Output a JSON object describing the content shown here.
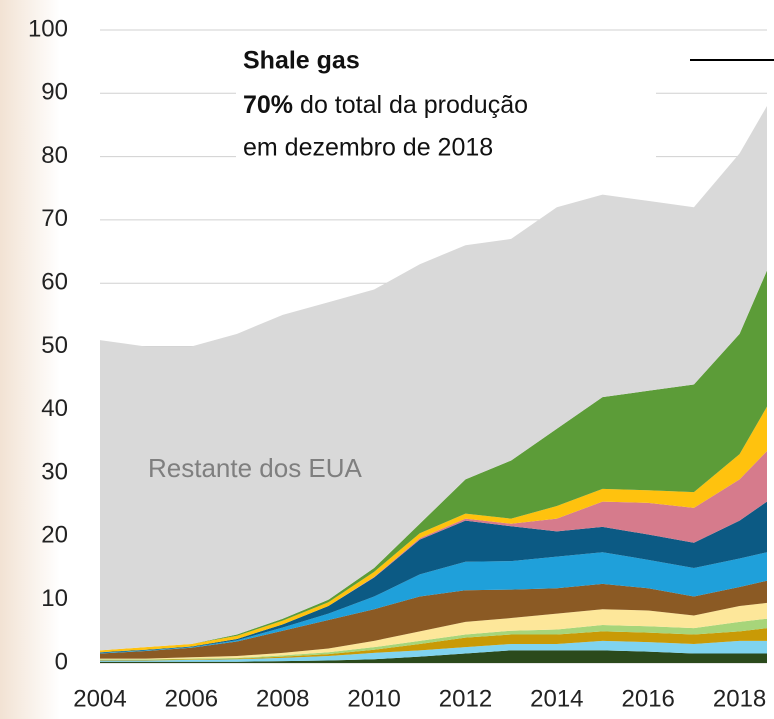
{
  "chart_data": {
    "type": "stacked_area",
    "annotation": {
      "title": "Shale gas",
      "highlight": "70%",
      "text": "do total da produção",
      "line2": "em dezembro de 2018"
    },
    "rest_label": "Restante dos EUA",
    "x": [
      2004,
      2005,
      2006,
      2007,
      2008,
      2009,
      2010,
      2011,
      2012,
      2013,
      2014,
      2015,
      2016,
      2017,
      2018,
      2018.6
    ],
    "xlim": [
      2004,
      2018.6
    ],
    "xticks": [
      2004,
      2006,
      2008,
      2010,
      2012,
      2014,
      2016,
      2018
    ],
    "ylim": [
      0,
      100
    ],
    "yticks": [
      0,
      10,
      20,
      30,
      40,
      50,
      60,
      70,
      80,
      90,
      100
    ],
    "grid": true,
    "series": [
      {
        "color": "#2b4a1c",
        "values": [
          0.2,
          0.2,
          0.2,
          0.2,
          0.3,
          0.4,
          0.6,
          1.0,
          1.5,
          2.0,
          2.0,
          2.0,
          1.8,
          1.5,
          1.5,
          1.5
        ]
      },
      {
        "color": "#7fd3ef",
        "values": [
          0.2,
          0.2,
          0.3,
          0.4,
          0.5,
          0.7,
          1.0,
          1.0,
          1.0,
          1.0,
          1.0,
          1.5,
          1.5,
          1.5,
          2.0,
          2.0
        ]
      },
      {
        "color": "#c99a06",
        "values": [
          0.1,
          0.1,
          0.1,
          0.1,
          0.2,
          0.3,
          0.5,
          1.0,
          1.5,
          1.5,
          1.5,
          1.5,
          1.5,
          1.5,
          1.5,
          2.0
        ]
      },
      {
        "color": "#a7d57a",
        "values": [
          0.1,
          0.1,
          0.1,
          0.1,
          0.2,
          0.3,
          0.4,
          0.5,
          0.5,
          0.6,
          0.8,
          1.0,
          1.0,
          1.0,
          1.5,
          1.5
        ]
      },
      {
        "color": "#fde79a",
        "values": [
          0.1,
          0.1,
          0.2,
          0.3,
          0.4,
          0.6,
          1.0,
          1.5,
          2.0,
          2.0,
          2.5,
          2.5,
          2.5,
          2.0,
          2.5,
          2.5
        ]
      },
      {
        "color": "#8b5a24",
        "values": [
          0.8,
          1.2,
          1.5,
          2.3,
          3.5,
          4.5,
          5.0,
          5.5,
          5.0,
          4.5,
          4.0,
          4.0,
          3.5,
          3.0,
          3.0,
          3.5
        ]
      },
      {
        "color": "#1fa0da",
        "values": [
          0.1,
          0.1,
          0.1,
          0.2,
          0.5,
          1.0,
          2.0,
          3.5,
          4.5,
          4.5,
          5.0,
          5.0,
          4.5,
          4.5,
          4.5,
          4.5
        ]
      },
      {
        "color": "#0c5a84",
        "values": [
          0.1,
          0.1,
          0.1,
          0.2,
          0.5,
          1.2,
          3.0,
          5.5,
          6.5,
          5.5,
          4.0,
          4.0,
          4.0,
          4.0,
          6.0,
          8.0
        ]
      },
      {
        "color": "#d67b8c",
        "values": [
          0,
          0,
          0,
          0,
          0,
          0,
          0.1,
          0.2,
          0.3,
          0.4,
          2.0,
          4.0,
          5.0,
          5.5,
          6.5,
          8.0
        ]
      },
      {
        "color": "#ffc20e",
        "values": [
          0.3,
          0.4,
          0.4,
          0.5,
          0.6,
          0.6,
          0.8,
          0.8,
          0.8,
          0.8,
          2.0,
          2.0,
          2.0,
          2.5,
          4.0,
          7.0
        ]
      },
      {
        "color": "#5c9c38",
        "values": [
          0,
          0,
          0,
          0.2,
          0.3,
          0.4,
          0.6,
          1.5,
          5.4,
          9.2,
          12.2,
          14.5,
          15.7,
          17,
          19,
          21.5
        ]
      },
      {
        "color": "#d9d9d9",
        "values": [
          49,
          47.5,
          47,
          47.5,
          48,
          47,
          44,
          41,
          37,
          35,
          35,
          32,
          30,
          28,
          28.5,
          26
        ]
      }
    ]
  }
}
